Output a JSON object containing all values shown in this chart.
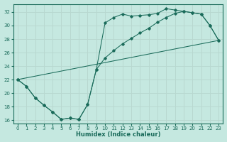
{
  "xlabel": "Humidex (Indice chaleur)",
  "bg_color": "#c5e8e0",
  "grid_color": "#b0d8d0",
  "line_color": "#1a6b5a",
  "xlim": [
    -0.5,
    23.5
  ],
  "ylim": [
    15.5,
    33.2
  ],
  "xticks": [
    0,
    1,
    2,
    3,
    4,
    5,
    6,
    7,
    8,
    9,
    10,
    11,
    12,
    13,
    14,
    15,
    16,
    17,
    18,
    19,
    20,
    21,
    22,
    23
  ],
  "yticks": [
    16,
    18,
    20,
    22,
    24,
    26,
    28,
    30,
    32
  ],
  "curve1_x": [
    0,
    1,
    2,
    3,
    4,
    5,
    6,
    7,
    8,
    9,
    10,
    11,
    12,
    13,
    14,
    15,
    16,
    17,
    18,
    19,
    20,
    21,
    22,
    23
  ],
  "curve1_y": [
    22.0,
    21.0,
    19.3,
    18.2,
    17.2,
    16.1,
    16.3,
    16.1,
    18.3,
    23.5,
    30.4,
    31.2,
    31.7,
    31.4,
    31.5,
    31.6,
    31.8,
    32.5,
    32.3,
    32.1,
    31.9,
    31.7,
    30.0,
    27.8
  ],
  "curve2_x": [
    0,
    1,
    2,
    3,
    4,
    5,
    6,
    7,
    8,
    9,
    10,
    11,
    12,
    13,
    14,
    15,
    16,
    17,
    18,
    19,
    20,
    21,
    22,
    23
  ],
  "curve2_y": [
    22.0,
    21.0,
    19.3,
    18.2,
    17.2,
    16.1,
    16.3,
    16.1,
    18.3,
    23.5,
    25.2,
    26.3,
    27.3,
    28.1,
    28.9,
    29.6,
    30.5,
    31.2,
    31.8,
    32.1,
    31.9,
    31.7,
    30.0,
    27.8
  ],
  "curve3_x": [
    0,
    23
  ],
  "curve3_y": [
    22.0,
    27.8
  ]
}
